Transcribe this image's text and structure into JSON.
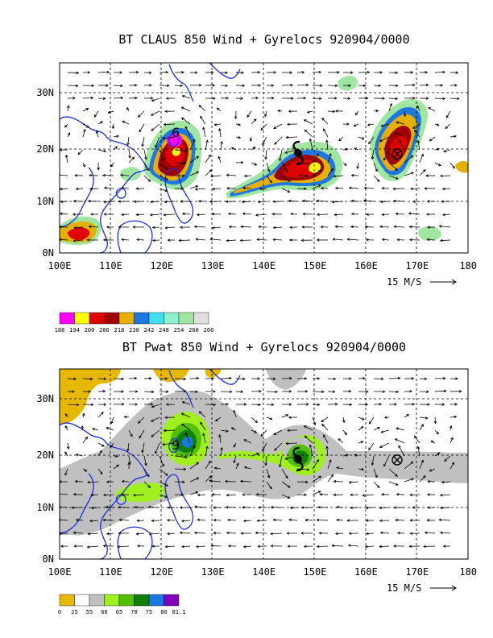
{
  "panels": [
    {
      "title": "BT CLAUS 850 Wind + Gyrelocs 920904/0000",
      "lon_labels": [
        "100E",
        "110E",
        "120E",
        "130E",
        "140E",
        "150E",
        "160E",
        "170E",
        "180"
      ],
      "lat_labels": [
        "30N",
        "20N",
        "10N",
        "0N"
      ],
      "ref_vector_label": "15 M/S",
      "colorbar": {
        "labels": [
          "188",
          "194",
          "200",
          "206",
          "218",
          "230",
          "242",
          "248",
          "254",
          "260",
          "266"
        ],
        "colors": [
          "#ff00ff",
          "#ffff00",
          "#e00000",
          "#a00000",
          "#e6b000",
          "#1f78e0",
          "#40e0f0",
          "#8ef0d0",
          "#a0e6a0",
          "#e0e0e0"
        ]
      },
      "gyre_symbols": [
        {
          "type": "number",
          "text": "6",
          "lon": 122.5,
          "lat": 22.5
        },
        {
          "type": "cyclone",
          "lon": 147,
          "lat": 19.5
        },
        {
          "type": "circle-x",
          "lon": 166.5,
          "lat": 19
        }
      ]
    },
    {
      "title": "BT Pwat 850 Wind + Gyrelocs 920904/0000",
      "lon_labels": [
        "100E",
        "110E",
        "120E",
        "130E",
        "140E",
        "150E",
        "160E",
        "170E",
        "180"
      ],
      "lat_labels": [
        "30N",
        "20N",
        "10N",
        "0N"
      ],
      "ref_vector_label": "15 M/S",
      "colorbar": {
        "labels": [
          "0",
          "25",
          "55",
          "60",
          "65",
          "70",
          "75",
          "80",
          "81.1"
        ],
        "colors": [
          "#e6b800",
          "#ffffff",
          "#c0c0c0",
          "#a0f020",
          "#50c000",
          "#108000",
          "#1878e0",
          "#8000c0"
        ]
      },
      "gyre_symbols": [
        {
          "type": "number",
          "text": "9",
          "lon": 122.5,
          "lat": 21
        },
        {
          "type": "cyclone",
          "lon": 147,
          "lat": 19.5
        },
        {
          "type": "circle-x",
          "lon": 166.5,
          "lat": 19
        }
      ]
    }
  ]
}
